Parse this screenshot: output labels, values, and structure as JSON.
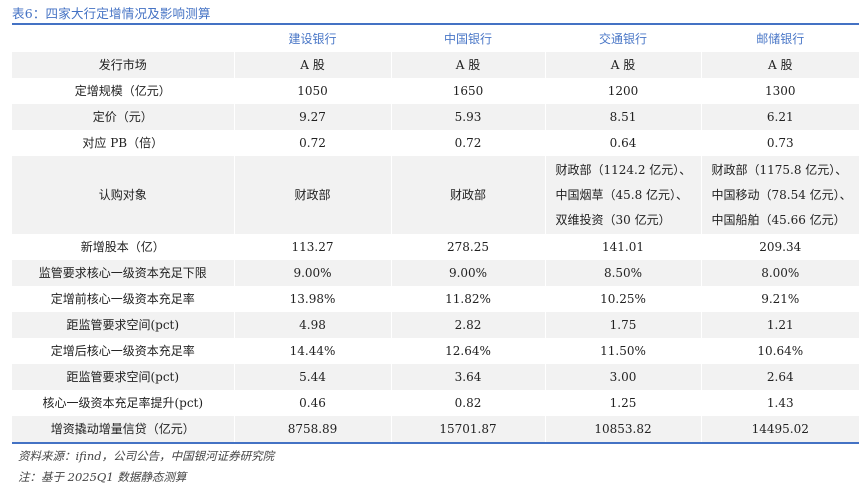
{
  "title": "表6：四家大行定增情况及影响测算",
  "columns": [
    "",
    "建设银行",
    "中国银行",
    "交通银行",
    "邮储银行"
  ],
  "rows": [
    {
      "label": "发行市场",
      "values": [
        "A 股",
        "A 股",
        "A 股",
        "A 股"
      ]
    },
    {
      "label": "定增规模（亿元）",
      "values": [
        "1050",
        "1650",
        "1200",
        "1300"
      ]
    },
    {
      "label": "定价（元）",
      "values": [
        "9.27",
        "5.93",
        "8.51",
        "6.21"
      ]
    },
    {
      "label": "对应 PB（倍）",
      "values": [
        "0.72",
        "0.72",
        "0.64",
        "0.73"
      ]
    },
    {
      "label": "认购对象",
      "values": [
        "财政部",
        "财政部",
        [
          "财政部（1124.2 亿元）、",
          "中国烟草（45.8 亿元）、",
          "双维投资（30 亿元）"
        ],
        [
          "财政部（1175.8 亿元）、",
          "中国移动（78.54 亿元）、",
          "中国船舶（45.66 亿元）"
        ]
      ]
    },
    {
      "label": "新增股本（亿）",
      "values": [
        "113.27",
        "278.25",
        "141.01",
        "209.34"
      ]
    },
    {
      "label": "监管要求核心一级资本充足下限",
      "values": [
        "9.00%",
        "9.00%",
        "8.50%",
        "8.00%"
      ]
    },
    {
      "label": "定增前核心一级资本充足率",
      "values": [
        "13.98%",
        "11.82%",
        "10.25%",
        "9.21%"
      ]
    },
    {
      "label": "距监管要求空间(pct)",
      "values": [
        "4.98",
        "2.82",
        "1.75",
        "1.21"
      ]
    },
    {
      "label": "定增后核心一级资本充足率",
      "values": [
        "14.44%",
        "12.64%",
        "11.50%",
        "10.64%"
      ]
    },
    {
      "label": "距监管要求空间(pct)",
      "values": [
        "5.44",
        "3.64",
        "3.00",
        "2.64"
      ]
    },
    {
      "label": "核心一级资本充足率提升(pct)",
      "values": [
        "0.46",
        "0.82",
        "1.25",
        "1.43"
      ]
    },
    {
      "label": "增资撬动增量信贷（亿元）",
      "values": [
        "8758.89",
        "15701.87",
        "10853.82",
        "14495.02"
      ]
    }
  ],
  "source": "资料来源：ifind，公司公告，中国银河证券研究院",
  "note": "注：基于 2025Q1 数据静态测算",
  "colors": {
    "accent": "#4472c4",
    "stripe": "#f2f2f2"
  }
}
